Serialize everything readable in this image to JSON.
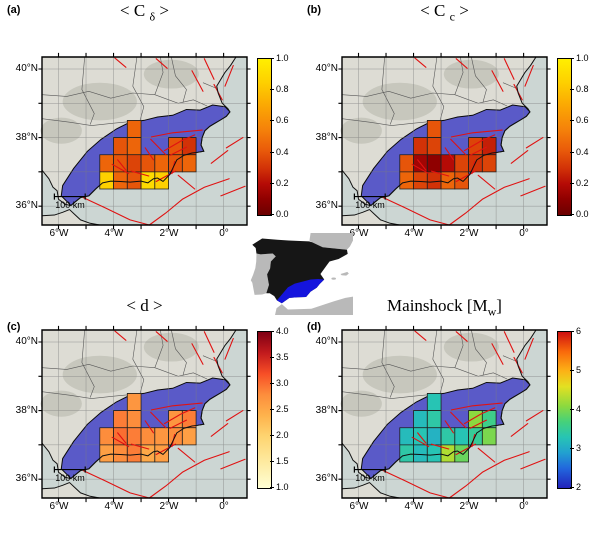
{
  "figure": {
    "scalebar_label": "100 km",
    "axes": {
      "xticks": [
        "6°W",
        "4°W",
        "2°W",
        "0°"
      ],
      "yticks": [
        "40°N",
        "38°N",
        "36°N"
      ]
    },
    "inset": {
      "spain_color": "#161616",
      "study_region_color": "#1414dd",
      "neighbor_color": "#b9b9b9"
    }
  },
  "chart_data": {
    "type": "heatmap",
    "cell_size_deg": 0.5,
    "lon_range": [
      -6.6,
      0.85
    ],
    "lat_range": [
      35.45,
      40.35
    ],
    "cells": [
      {
        "lon": -3.5,
        "lat": 38.0,
        "values": {
          "a": 0.45,
          "b": 0.4,
          "c": 2.7,
          "d": 3.3
        }
      },
      {
        "lon": -4.0,
        "lat": 37.5,
        "values": {
          "a": 0.4,
          "b": 0.3,
          "c": 2.9,
          "d": 3.2
        }
      },
      {
        "lon": -3.5,
        "lat": 37.5,
        "values": {
          "a": 0.45,
          "b": 0.35,
          "c": 2.8,
          "d": 3.4
        }
      },
      {
        "lon": -2.0,
        "lat": 37.5,
        "values": {
          "a": 0.4,
          "b": 0.35,
          "c": 2.7,
          "d": 4.1
        }
      },
      {
        "lon": -1.5,
        "lat": 37.5,
        "values": {
          "a": 0.3,
          "b": 0.25,
          "c": 2.9,
          "d": 3.6
        }
      },
      {
        "lon": -4.5,
        "lat": 37.0,
        "values": {
          "a": 0.45,
          "b": 0.4,
          "c": 2.8,
          "d": 3.2
        }
      },
      {
        "lon": -4.0,
        "lat": 37.0,
        "values": {
          "a": 0.4,
          "b": 0.15,
          "c": 3.0,
          "d": 3.3
        }
      },
      {
        "lon": -3.5,
        "lat": 37.0,
        "values": {
          "a": 0.35,
          "b": 0.1,
          "c": 2.9,
          "d": 3.1
        }
      },
      {
        "lon": -3.0,
        "lat": 37.0,
        "values": {
          "a": 0.4,
          "b": 0.2,
          "c": 2.8,
          "d": 3.4
        }
      },
      {
        "lon": -2.5,
        "lat": 37.0,
        "values": {
          "a": 0.45,
          "b": 0.35,
          "c": 2.7,
          "d": 3.3
        }
      },
      {
        "lon": -2.0,
        "lat": 37.0,
        "values": {
          "a": 0.4,
          "b": 0.3,
          "c": 2.8,
          "d": 3.5
        }
      },
      {
        "lon": -1.5,
        "lat": 37.0,
        "values": {
          "a": 0.45,
          "b": 0.35,
          "c": 2.6,
          "d": 4.0
        }
      },
      {
        "lon": -4.5,
        "lat": 36.5,
        "values": {
          "a": 0.85,
          "b": 0.45,
          "c": 2.6,
          "d": 3.4
        }
      },
      {
        "lon": -4.0,
        "lat": 36.5,
        "values": {
          "a": 0.45,
          "b": 0.35,
          "c": 2.8,
          "d": 3.2
        }
      },
      {
        "lon": -3.5,
        "lat": 36.5,
        "values": {
          "a": 0.4,
          "b": 0.3,
          "c": 2.9,
          "d": 3.3
        }
      },
      {
        "lon": -3.0,
        "lat": 36.5,
        "values": {
          "a": 0.9,
          "b": 0.45,
          "c": 2.5,
          "d": 4.3
        }
      },
      {
        "lon": -2.5,
        "lat": 36.5,
        "values": {
          "a": 0.85,
          "b": 0.4,
          "c": 2.6,
          "d": 3.9
        }
      }
    ],
    "panels": [
      {
        "key": "a",
        "label": "(a)",
        "title": "< Cδ >",
        "title_pre": "< C ",
        "title_sub": "δ",
        "title_post": " >",
        "range": [
          0,
          1
        ],
        "colorbar_ticks": [
          "1.0",
          "0.8",
          "0.6",
          "0.4",
          "0.2",
          "0.0"
        ],
        "colormap": [
          [
            0.0,
            "#6b0000"
          ],
          [
            0.1,
            "#8f0000"
          ],
          [
            0.2,
            "#b50b06"
          ],
          [
            0.3,
            "#d23207"
          ],
          [
            0.42,
            "#ea5c0a"
          ],
          [
            0.55,
            "#f5820a"
          ],
          [
            0.7,
            "#fba703"
          ],
          [
            0.85,
            "#fed000"
          ],
          [
            1.0,
            "#ffef00"
          ]
        ]
      },
      {
        "key": "b",
        "label": "(b)",
        "title": "< Cc >",
        "title_pre": "< C ",
        "title_sub": "c",
        "title_post": " >",
        "range": [
          0,
          1
        ],
        "colorbar_ticks": [
          "1.0",
          "0.8",
          "0.6",
          "0.4",
          "0.2",
          "0.0"
        ],
        "colormap": [
          [
            0.0,
            "#6b0000"
          ],
          [
            0.1,
            "#8f0000"
          ],
          [
            0.2,
            "#b50b06"
          ],
          [
            0.3,
            "#d23207"
          ],
          [
            0.42,
            "#ea5c0a"
          ],
          [
            0.55,
            "#f5820a"
          ],
          [
            0.7,
            "#fba703"
          ],
          [
            0.85,
            "#fed000"
          ],
          [
            1.0,
            "#ffef00"
          ]
        ]
      },
      {
        "key": "c",
        "label": "(c)",
        "title": "< d >",
        "title_pre": "< d >",
        "title_sub": "",
        "title_post": "",
        "range": [
          1,
          4
        ],
        "colorbar_ticks": [
          "4.0",
          "3.5",
          "3.0",
          "2.5",
          "2.0",
          "1.5",
          "1.0"
        ],
        "colormap": [
          [
            1.0,
            "#ffffd4"
          ],
          [
            1.5,
            "#feeaa0"
          ],
          [
            2.0,
            "#fed470"
          ],
          [
            2.4,
            "#feb24c"
          ],
          [
            2.8,
            "#fd8d3c"
          ],
          [
            3.2,
            "#f74e26"
          ],
          [
            3.6,
            "#c21a1d"
          ],
          [
            4.0,
            "#7f0014"
          ]
        ]
      },
      {
        "key": "d",
        "label": "(d)",
        "title": "Mainshock [Mw]",
        "title_pre": "Mainshock [M",
        "title_sub": "w",
        "title_post": "]",
        "range": [
          2,
          6
        ],
        "colorbar_ticks": [
          "6",
          "5",
          "4",
          "3",
          "2"
        ],
        "colormap": [
          [
            2.0,
            "#2222bb"
          ],
          [
            2.5,
            "#2266dd"
          ],
          [
            2.9,
            "#22a0d0"
          ],
          [
            3.3,
            "#27c4b4"
          ],
          [
            3.7,
            "#46d17a"
          ],
          [
            4.1,
            "#8cd93f"
          ],
          [
            4.6,
            "#e3e022"
          ],
          [
            5.0,
            "#fcb216"
          ],
          [
            5.5,
            "#f9690b"
          ],
          [
            6.0,
            "#cf1010"
          ]
        ]
      }
    ]
  }
}
